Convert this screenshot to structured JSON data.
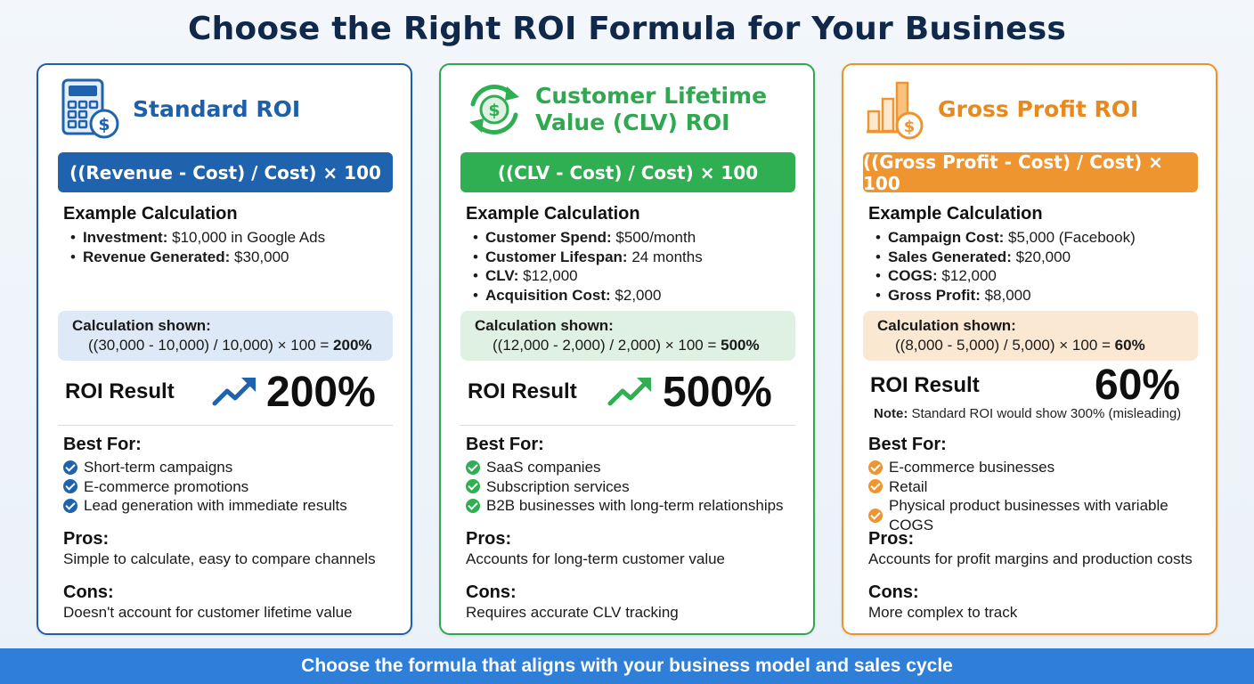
{
  "page": {
    "title": "Choose the Right ROI Formula for Your Business",
    "footer": "Choose the formula that aligns with your business model and sales cycle"
  },
  "colors": {
    "standard": "#1f62ad",
    "clv": "#2fae52",
    "gross_profit": "#ef9530",
    "title": "#10284a",
    "footer": "#2f7fd8"
  },
  "cards": {
    "standard": {
      "icon": "calculator-dollar-icon",
      "title": "Standard ROI",
      "formula": "((Revenue - Cost) / Cost) × 100",
      "example_label": "Example Calculation",
      "example": [
        {
          "label": "Investment:",
          "value": "$10,000 in Google Ads"
        },
        {
          "label": "Revenue Generated:",
          "value": "$30,000"
        }
      ],
      "calc_label": "Calculation shown:",
      "calc_expr": "((30,000 - 10,000) / 10,000) × 100 =",
      "calc_result": "200%",
      "roi_label": "ROI Result",
      "roi_icon": "trend-up-icon",
      "roi_value": "200%",
      "best_label": "Best For:",
      "best": [
        "Short-term campaigns",
        "E-commerce promotions",
        "Lead generation with immediate results"
      ],
      "pros_label": "Pros:",
      "pros": "Simple to calculate, easy to compare channels",
      "cons_label": "Cons:",
      "cons": "Doesn't account for customer lifetime value"
    },
    "clv": {
      "icon": "recurring-dollar-icon",
      "title": "Customer Lifetime Value (CLV) ROI",
      "formula": "((CLV - Cost) / Cost) × 100",
      "example_label": "Example Calculation",
      "example": [
        {
          "label": "Customer Spend:",
          "value": "$500/month"
        },
        {
          "label": "Customer Lifespan:",
          "value": "24 months"
        },
        {
          "label": "CLV:",
          "value": "$12,000"
        },
        {
          "label": "Acquisition Cost:",
          "value": "$2,000"
        }
      ],
      "calc_label": "Calculation shown:",
      "calc_expr": "((12,000 - 2,000) / 2,000) × 100 =",
      "calc_result": "500%",
      "roi_label": "ROI Result",
      "roi_icon": "trend-up-icon",
      "roi_value": "500%",
      "best_label": "Best For:",
      "best": [
        "SaaS companies",
        "Subscription services",
        "B2B businesses with long-term relationships"
      ],
      "pros_label": "Pros:",
      "pros": "Accounts for long-term customer value",
      "cons_label": "Cons:",
      "cons": "Requires accurate CLV tracking"
    },
    "gross_profit": {
      "icon": "bar-chart-dollar-icon",
      "title": "Gross Profit ROI",
      "formula": "((Gross Profit - Cost) / Cost) × 100",
      "example_label": "Example Calculation",
      "example": [
        {
          "label": "Campaign Cost:",
          "value": "$5,000 (Facebook)"
        },
        {
          "label": "Sales Generated:",
          "value": "$20,000"
        },
        {
          "label": "COGS:",
          "value": "$12,000"
        },
        {
          "label": "Gross Profit:",
          "value": "$8,000"
        }
      ],
      "calc_label": "Calculation shown:",
      "calc_expr": "((8,000 - 5,000) / 5,000) × 100 =",
      "calc_result": "60%",
      "roi_label": "ROI Result",
      "roi_value": "60%",
      "note_label": "Note:",
      "note_text": "Standard ROI would show 300% (misleading)",
      "best_label": "Best For:",
      "best": [
        "E-commerce businesses",
        "Retail",
        "Physical product businesses with variable COGS"
      ],
      "pros_label": "Pros:",
      "pros": "Accounts for profit margins and production costs",
      "cons_label": "Cons:",
      "cons": "More complex to track"
    }
  }
}
